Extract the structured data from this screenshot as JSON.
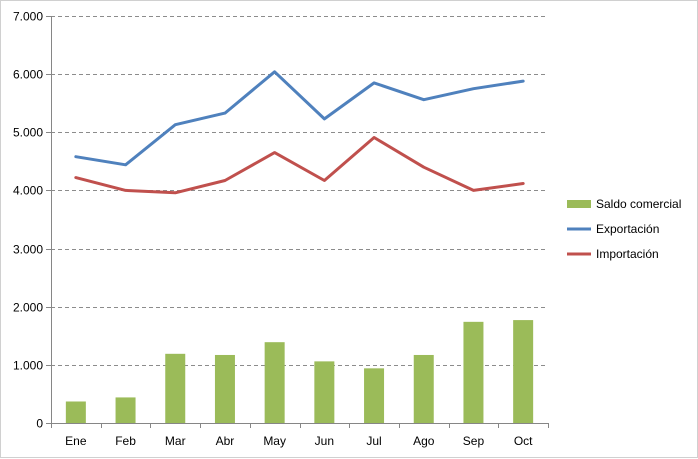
{
  "chart_data": {
    "type": "bar",
    "categories": [
      "Ene",
      "Feb",
      "Mar",
      "Abr",
      "May",
      "Jun",
      "Jul",
      "Ago",
      "Sep",
      "Oct"
    ],
    "series": [
      {
        "name": "Saldo comercial",
        "type": "bar",
        "color": "#9BBB59",
        "values": [
          370,
          440,
          1190,
          1170,
          1390,
          1060,
          940,
          1170,
          1740,
          1770
        ]
      },
      {
        "name": "Exportación",
        "type": "line",
        "color": "#4F81BD",
        "values": [
          4580,
          4440,
          5130,
          5330,
          6040,
          5230,
          5850,
          5560,
          5750,
          5880
        ]
      },
      {
        "name": "Importación",
        "type": "line",
        "color": "#C0504D",
        "values": [
          4220,
          4000,
          3960,
          4170,
          4650,
          4170,
          4910,
          4400,
          4000,
          4120
        ]
      }
    ],
    "ylim": [
      0,
      7000
    ],
    "yticks": [
      0,
      1000,
      2000,
      3000,
      4000,
      5000,
      6000,
      7000
    ],
    "ytick_labels": [
      "0",
      "1.000",
      "2.000",
      "3.000",
      "4.000",
      "5.000",
      "6.000",
      "7.000"
    ],
    "grid": "horizontal dashed",
    "legend_position": "right",
    "title": "",
    "xlabel": "",
    "ylabel": ""
  },
  "legend": {
    "items": [
      {
        "label": "Saldo comercial",
        "kind": "bar",
        "color": "#9BBB59"
      },
      {
        "label": "Exportación",
        "kind": "line",
        "color": "#4F81BD"
      },
      {
        "label": "Importación",
        "kind": "line",
        "color": "#C0504D"
      }
    ]
  }
}
